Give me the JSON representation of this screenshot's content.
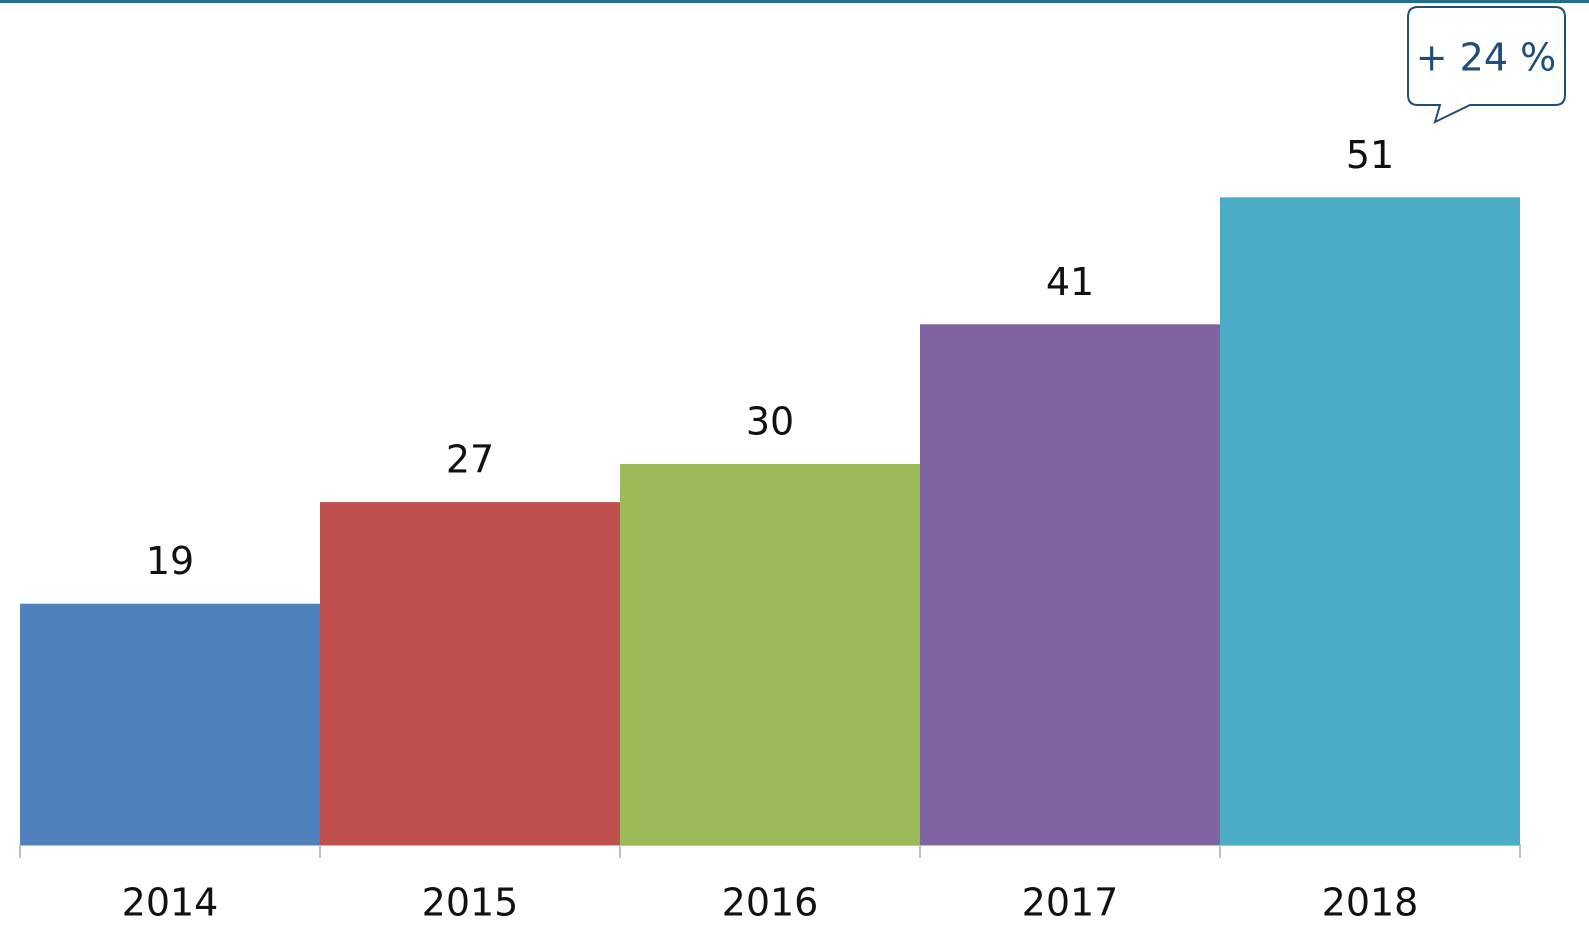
{
  "chart_data": {
    "type": "bar",
    "categories": [
      "2014",
      "2015",
      "2016",
      "2017",
      "2018"
    ],
    "values": [
      19,
      27,
      30,
      41,
      51
    ],
    "colors": [
      "#4f81bd",
      "#c0504d",
      "#9bbb59",
      "#8064a2",
      "#4bacc6"
    ],
    "annotation": "+ 24 %"
  }
}
